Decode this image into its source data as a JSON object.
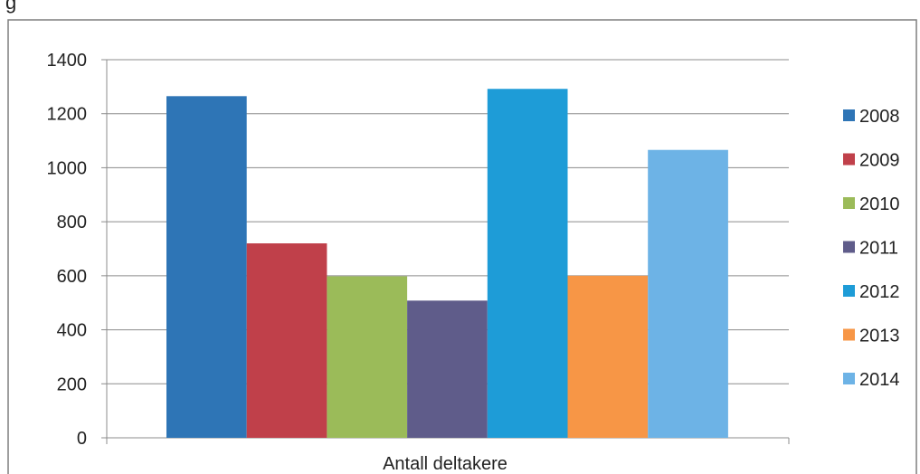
{
  "chart_data": {
    "type": "bar",
    "categories": [
      "Antall deltakere"
    ],
    "series": [
      {
        "name": "2008",
        "values": [
          1265
        ],
        "color": "#2E75B6"
      },
      {
        "name": "2009",
        "values": [
          720
        ],
        "color": "#C0404A"
      },
      {
        "name": "2010",
        "values": [
          598
        ],
        "color": "#9BBB59"
      },
      {
        "name": "2011",
        "values": [
          508
        ],
        "color": "#5F5C8A"
      },
      {
        "name": "2012",
        "values": [
          1292
        ],
        "color": "#1E9CD7"
      },
      {
        "name": "2013",
        "values": [
          600
        ],
        "color": "#F79646"
      },
      {
        "name": "2014",
        "values": [
          1066
        ],
        "color": "#6DB3E6"
      }
    ],
    "xlabel": "Antall deltakere",
    "ylabel": "",
    "ylim": [
      0,
      1400
    ],
    "yticks": [
      0,
      200,
      400,
      600,
      800,
      1000,
      1200,
      1400
    ],
    "grid": true,
    "legend": "right"
  }
}
